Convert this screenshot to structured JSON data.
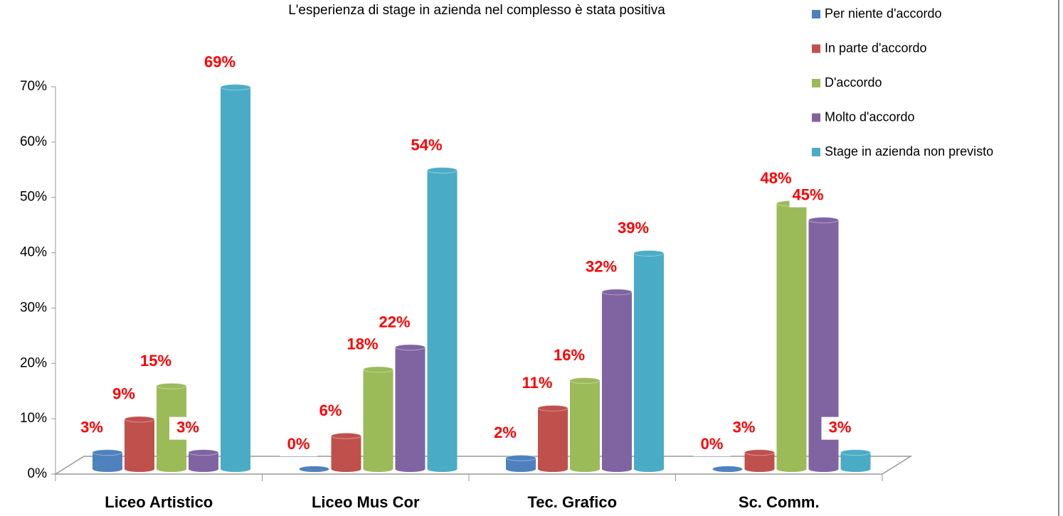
{
  "chart_data": {
    "type": "bar3d",
    "title": "L'esperienza di stage in azienda nel complesso è stata positiva",
    "categories": [
      "Liceo Artistico",
      "Liceo Mus Cor",
      "Tec. Grafico",
      "Sc. Comm."
    ],
    "series": [
      {
        "name": "Per niente d'accordo",
        "color": "#4f81bd",
        "values": [
          3,
          0,
          2,
          0
        ],
        "value_labels": [
          "3%",
          "0%",
          "2%",
          "0%"
        ]
      },
      {
        "name": "In parte d'accordo",
        "color": "#c0504d",
        "values": [
          9,
          6,
          11,
          3
        ],
        "value_labels": [
          "9%",
          "6%",
          "11%",
          "3%"
        ]
      },
      {
        "name": "D'accordo",
        "color": "#9bbb59",
        "values": [
          15,
          18,
          16,
          48
        ],
        "value_labels": [
          "15%",
          "18%",
          "16%",
          "48%"
        ]
      },
      {
        "name": "Molto d'accordo",
        "color": "#8064a2",
        "values": [
          3,
          22,
          32,
          45
        ],
        "value_labels": [
          "3%",
          "22%",
          "32%",
          "45%"
        ]
      },
      {
        "name": "Stage in azienda non previsto",
        "color": "#4bacc6",
        "values": [
          69,
          54,
          39,
          3
        ],
        "value_labels": [
          "69%",
          "54%",
          "39%",
          "3%"
        ]
      }
    ],
    "ylim": [
      0,
      70
    ],
    "yticks": [
      {
        "value": 0,
        "label": "0%"
      },
      {
        "value": 10,
        "label": "10%"
      },
      {
        "value": 20,
        "label": "20%"
      },
      {
        "value": 30,
        "label": "30%"
      },
      {
        "value": 40,
        "label": "40%"
      },
      {
        "value": 50,
        "label": "50%"
      },
      {
        "value": 60,
        "label": "60%"
      },
      {
        "value": 70,
        "label": "70%"
      }
    ],
    "legend": "top-right"
  }
}
